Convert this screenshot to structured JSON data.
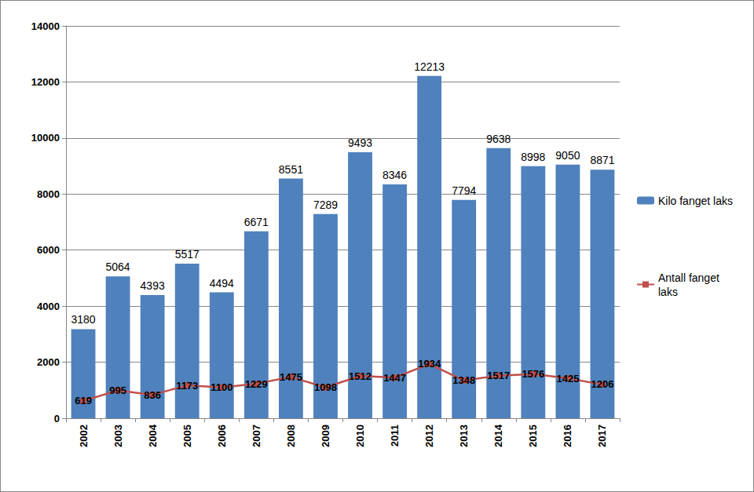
{
  "chart_data": {
    "type": "bar",
    "categories": [
      "2002",
      "2003",
      "2004",
      "2005",
      "2006",
      "2007",
      "2008",
      "2009",
      "2010",
      "2011",
      "2012",
      "2013",
      "2014",
      "2015",
      "2016",
      "2017"
    ],
    "series": [
      {
        "name": "Kilo fanget laks",
        "type": "bar",
        "color": "#4f81bd",
        "values": [
          3180,
          5064,
          4393,
          5517,
          4494,
          6671,
          8551,
          7289,
          9493,
          8346,
          12213,
          7794,
          9638,
          8998,
          9050,
          8871
        ]
      },
      {
        "name": "Antall fanget laks",
        "type": "line",
        "color": "#c0504d",
        "marker": "square",
        "values": [
          619,
          995,
          836,
          1173,
          1100,
          1229,
          1475,
          1098,
          1512,
          1447,
          1934,
          1348,
          1517,
          1576,
          1425,
          1206
        ]
      }
    ],
    "ylim": [
      0,
      14000
    ],
    "yticks": [
      0,
      2000,
      4000,
      6000,
      8000,
      10000,
      12000,
      14000
    ],
    "grid": true,
    "data_labels": true,
    "legend": "right"
  }
}
